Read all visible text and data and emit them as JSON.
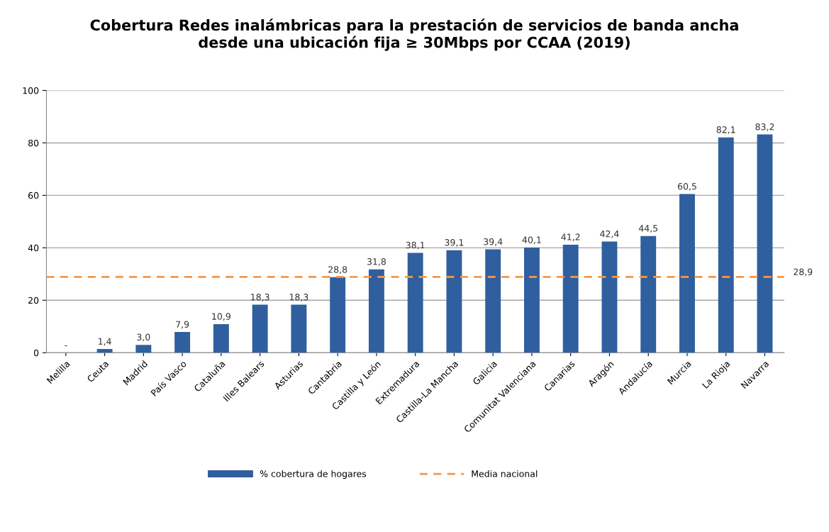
{
  "chart_data": {
    "type": "bar",
    "title": "Cobertura Redes inalámbricas para la prestación de servicios de banda ancha\ndesde una ubicación fija ≥ 30Mbps por CCAA (2019)",
    "categories": [
      "Melilla",
      "Ceuta",
      "Madrid",
      "País Vasco",
      "Cataluña",
      "Illes Balears",
      "Asturias",
      "Cantabria",
      "Castilla y León",
      "Extremadura",
      "Castilla-La Mancha",
      "Galicia",
      "Comunitat Valenciana",
      "Canarias",
      "Aragón",
      "Andalucía",
      "Murcia",
      "La Rioja",
      "Navarra"
    ],
    "series": [
      {
        "name": "% cobertura de hogares",
        "color": "#2f5f9f",
        "values": [
          null,
          1.4,
          3.0,
          7.9,
          10.9,
          18.3,
          18.3,
          28.8,
          31.8,
          38.1,
          39.1,
          39.4,
          40.1,
          41.2,
          42.4,
          44.5,
          60.5,
          82.1,
          83.2
        ],
        "value_labels": [
          "-",
          "1,4",
          "3,0",
          "7,9",
          "10,9",
          "18,3",
          "18,3",
          "28,8",
          "31,8",
          "38,1",
          "39,1",
          "39,4",
          "40,1",
          "41,2",
          "42,4",
          "44,5",
          "60,5",
          "82,1",
          "83,2"
        ]
      }
    ],
    "ref_lines": [
      {
        "axis": "y",
        "value": 28.9,
        "label": "Media nacional",
        "color": "#f79646",
        "line_style": "dashed"
      }
    ],
    "annotations": [
      "28,9"
    ],
    "ylim": [
      0,
      100
    ],
    "yticks": [
      0,
      20,
      40,
      60,
      80,
      100
    ],
    "grid": "y",
    "legend": "bottom"
  }
}
